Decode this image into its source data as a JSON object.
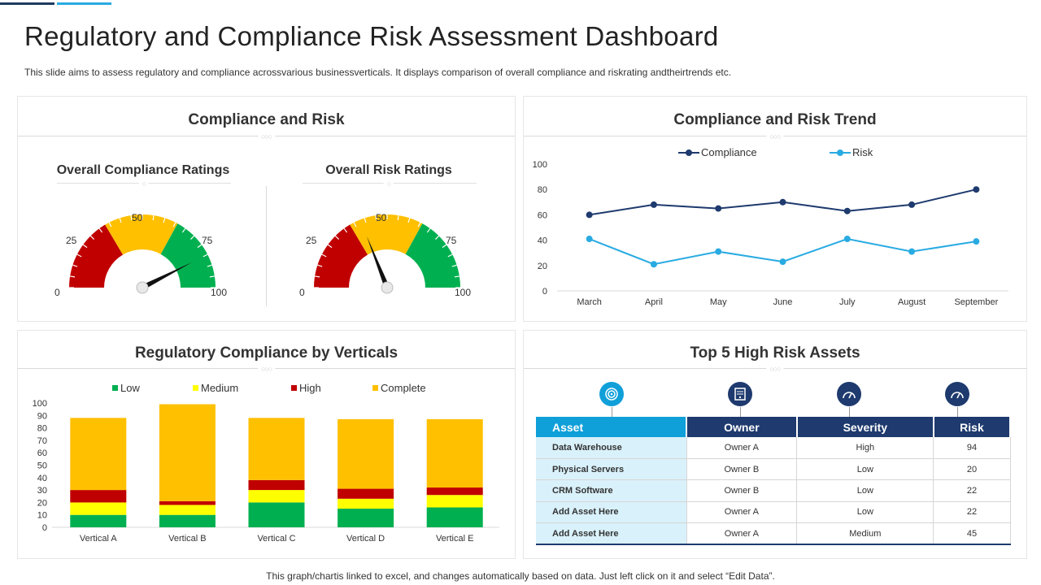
{
  "page": {
    "title": "Regulatory and Compliance Risk Assessment Dashboard",
    "subtitle": "This slide aims to assess regulatory and compliance acrossvarious businessverticals. It displays comparison of overall compliance and riskrating andtheirtrends etc.",
    "footer": "This graph/chartis linked to excel,  and changes automatically based on data. Just left click on it and select “Edit Data”."
  },
  "colors": {
    "navy": "#1e3a6e",
    "light_blue": "#29abe2",
    "red": "#c00000",
    "amber": "#ffc000",
    "yellow": "#ffff00",
    "green": "#00b050"
  },
  "panels": {
    "compliance_risk": {
      "title": "Compliance and Risk"
    },
    "trend": {
      "title": "Compliance and Risk Trend"
    },
    "verticals": {
      "title": "Regulatory Compliance by Verticals"
    },
    "assets": {
      "title": "Top 5 High Risk Assets"
    }
  },
  "gauges": {
    "scale_labels": [
      "0",
      "25",
      "50",
      "75",
      "100"
    ],
    "compliance": {
      "title": "Overall Compliance Ratings",
      "value": 85
    },
    "risk": {
      "title": "Overall Risk Ratings",
      "value": 38
    }
  },
  "chart_data": [
    {
      "type": "line",
      "title": "Compliance and Risk Trend",
      "categories": [
        "March",
        "April",
        "May",
        "June",
        "July",
        "August",
        "September"
      ],
      "ylim": [
        0,
        100
      ],
      "yticks": [
        0,
        20,
        40,
        60,
        80,
        100
      ],
      "legend": "top-center",
      "series": [
        {
          "name": "Compliance",
          "color": "#1e3a6e",
          "values": [
            60,
            68,
            65,
            70,
            63,
            68,
            80
          ]
        },
        {
          "name": "Risk",
          "color": "#29abe2",
          "values": [
            41,
            21,
            31,
            23,
            41,
            31,
            39
          ]
        }
      ]
    },
    {
      "type": "bar",
      "stacked": true,
      "title": "Regulatory Compliance by Verticals",
      "categories": [
        "Vertical A",
        "Vertical B",
        "Vertical C",
        "Vertical D",
        "Vertical E"
      ],
      "ylim": [
        0,
        100
      ],
      "yticks": [
        0,
        10,
        20,
        30,
        40,
        50,
        60,
        70,
        80,
        90,
        100
      ],
      "legend": "top-center",
      "series": [
        {
          "name": "Low",
          "color": "#00b050",
          "values": [
            10,
            10,
            20,
            15,
            16
          ]
        },
        {
          "name": "Medium",
          "color": "#ffff00",
          "values": [
            10,
            8,
            10,
            8,
            10
          ]
        },
        {
          "name": "High",
          "color": "#c00000",
          "values": [
            10,
            3,
            8,
            8,
            6
          ]
        },
        {
          "name": "Complete",
          "color": "#ffc000",
          "values": [
            58,
            78,
            50,
            56,
            55
          ]
        }
      ]
    },
    {
      "type": "table",
      "title": "Top 5 High Risk Assets",
      "columns": [
        "Asset",
        "Owner",
        "Severity",
        "Risk"
      ],
      "icons": [
        "target-icon",
        "server-icon",
        "speedometer-icon",
        "speedometer-icon"
      ],
      "rows": [
        [
          "Data Warehouse",
          "Owner A",
          "High",
          "94"
        ],
        [
          "Physical Servers",
          "Owner B",
          "Low",
          "20"
        ],
        [
          "CRM Software",
          "Owner B",
          "Low",
          "22"
        ],
        [
          "Add Asset Here",
          "Owner A",
          "Low",
          "22"
        ],
        [
          "Add Asset Here",
          "Owner A",
          "Medium",
          "45"
        ]
      ]
    }
  ]
}
